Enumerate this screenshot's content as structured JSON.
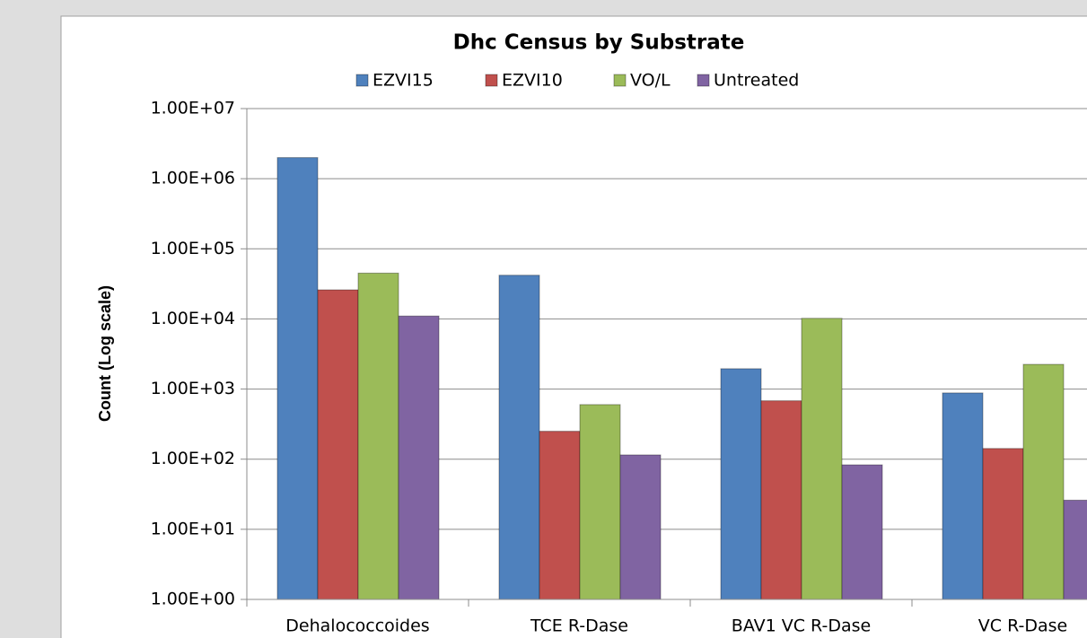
{
  "chart_data": {
    "type": "bar",
    "title": "Dhc Census by Substrate",
    "y_label": "Count (Log scale)",
    "categories": [
      "Dehalococcoides",
      "TCE R-Dase",
      "BAV1 VC R-Dase",
      "VC R-Dase"
    ],
    "series": [
      {
        "name": "EZVI15",
        "color": "#4f81bd",
        "values": [
          2000000,
          42000,
          1950,
          880
        ]
      },
      {
        "name": "EZVI10",
        "color": "#c0504d",
        "values": [
          26000,
          250,
          680,
          142
        ]
      },
      {
        "name": "VO/L",
        "color": "#9bbb59",
        "values": [
          45000,
          600,
          10200,
          2250
        ]
      },
      {
        "name": "Untreated",
        "color": "#8064a2",
        "values": [
          11000,
          115,
          83,
          26
        ]
      }
    ],
    "log_scale": true,
    "ylim": [
      1,
      10000000
    ],
    "yticks": [
      {
        "value": 1,
        "label": "1.00E+00"
      },
      {
        "value": 10,
        "label": "1.00E+01"
      },
      {
        "value": 100,
        "label": "1.00E+02"
      },
      {
        "value": 1000,
        "label": "1.00E+03"
      },
      {
        "value": 10000,
        "label": "1.00E+04"
      },
      {
        "value": 100000,
        "label": "1.00E+05"
      },
      {
        "value": 1000000,
        "label": "1.00E+06"
      },
      {
        "value": 10000000,
        "label": "1.00E+07"
      }
    ],
    "grid": true,
    "legend": "top"
  }
}
